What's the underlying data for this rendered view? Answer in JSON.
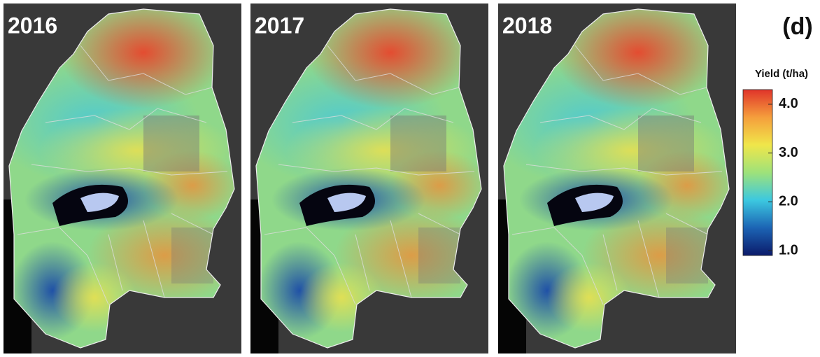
{
  "panels": [
    {
      "label": "2016"
    },
    {
      "label": "2017"
    },
    {
      "label": "2018"
    }
  ],
  "figure_label": "(d)",
  "legend": {
    "title": "Yield (t/ha)",
    "range": [
      0.9,
      4.3
    ],
    "ticks": [
      {
        "value": 1,
        "label": "1.0"
      },
      {
        "value": 2,
        "label": "2.0"
      },
      {
        "value": 3,
        "label": "3.0"
      },
      {
        "value": 4,
        "label": "4.0"
      }
    ],
    "colormap": [
      "#0b1a6a",
      "#1c64b4",
      "#3cc8e0",
      "#9ee27a",
      "#f0e64a",
      "#f59e3c",
      "#e0342a"
    ]
  }
}
